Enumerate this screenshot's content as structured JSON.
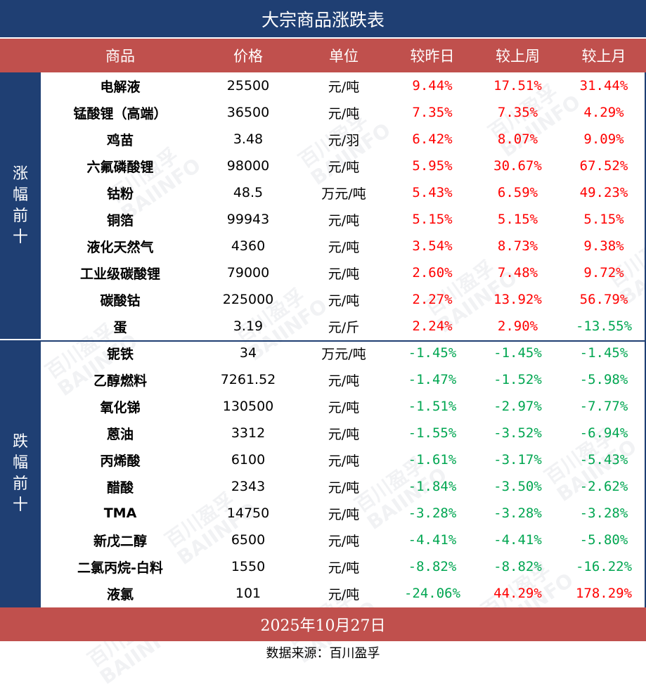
{
  "title": "大宗商品涨跌表",
  "headers": [
    "商品",
    "价格",
    "单位",
    "较昨日",
    "较上周",
    "较上月"
  ],
  "side_labels": {
    "up": [
      "涨",
      "幅",
      "前",
      "十"
    ],
    "down": [
      "跌",
      "幅",
      "前",
      "十"
    ]
  },
  "rows": [
    {
      "name": "电解液",
      "price": "25500",
      "unit": "元/吨",
      "day": "9.44%",
      "week": "17.51%",
      "month": "31.44%",
      "day_dir": "up",
      "week_dir": "up",
      "month_dir": "up"
    },
    {
      "name": "锰酸锂（高端）",
      "price": "36500",
      "unit": "元/吨",
      "day": "7.35%",
      "week": "7.35%",
      "month": "4.29%",
      "day_dir": "up",
      "week_dir": "up",
      "month_dir": "up"
    },
    {
      "name": "鸡苗",
      "price": "3.48",
      "unit": "元/羽",
      "day": "6.42%",
      "week": "8.07%",
      "month": "9.09%",
      "day_dir": "up",
      "week_dir": "up",
      "month_dir": "up"
    },
    {
      "name": "六氟磷酸锂",
      "price": "98000",
      "unit": "元/吨",
      "day": "5.95%",
      "week": "30.67%",
      "month": "67.52%",
      "day_dir": "up",
      "week_dir": "up",
      "month_dir": "up"
    },
    {
      "name": "钴粉",
      "price": "48.5",
      "unit": "万元/吨",
      "day": "5.43%",
      "week": "6.59%",
      "month": "49.23%",
      "day_dir": "up",
      "week_dir": "up",
      "month_dir": "up"
    },
    {
      "name": "铜箔",
      "price": "99943",
      "unit": "元/吨",
      "day": "5.15%",
      "week": "5.15%",
      "month": "5.15%",
      "day_dir": "up",
      "week_dir": "up",
      "month_dir": "up"
    },
    {
      "name": "液化天然气",
      "price": "4360",
      "unit": "元/吨",
      "day": "3.54%",
      "week": "8.73%",
      "month": "9.38%",
      "day_dir": "up",
      "week_dir": "up",
      "month_dir": "up"
    },
    {
      "name": "工业级碳酸锂",
      "price": "79000",
      "unit": "元/吨",
      "day": "2.60%",
      "week": "7.48%",
      "month": "9.72%",
      "day_dir": "up",
      "week_dir": "up",
      "month_dir": "up"
    },
    {
      "name": "碳酸钴",
      "price": "225000",
      "unit": "元/吨",
      "day": "2.27%",
      "week": "13.92%",
      "month": "56.79%",
      "day_dir": "up",
      "week_dir": "up",
      "month_dir": "up"
    },
    {
      "name": "蛋",
      "price": "3.19",
      "unit": "元/斤",
      "day": "2.24%",
      "week": "2.90%",
      "month": "-13.55%",
      "day_dir": "up",
      "week_dir": "up",
      "month_dir": "down"
    },
    {
      "name": "铌铁",
      "price": "34",
      "unit": "万元/吨",
      "day": "-1.45%",
      "week": "-1.45%",
      "month": "-1.45%",
      "day_dir": "down",
      "week_dir": "down",
      "month_dir": "down"
    },
    {
      "name": "乙醇燃料",
      "price": "7261.52",
      "unit": "元/吨",
      "day": "-1.47%",
      "week": "-1.52%",
      "month": "-5.98%",
      "day_dir": "down",
      "week_dir": "down",
      "month_dir": "down"
    },
    {
      "name": "氧化锑",
      "price": "130500",
      "unit": "元/吨",
      "day": "-1.51%",
      "week": "-2.97%",
      "month": "-7.77%",
      "day_dir": "down",
      "week_dir": "down",
      "month_dir": "down"
    },
    {
      "name": "蒽油",
      "price": "3312",
      "unit": "元/吨",
      "day": "-1.55%",
      "week": "-3.52%",
      "month": "-6.94%",
      "day_dir": "down",
      "week_dir": "down",
      "month_dir": "down"
    },
    {
      "name": "丙烯酸",
      "price": "6100",
      "unit": "元/吨",
      "day": "-1.61%",
      "week": "-3.17%",
      "month": "-5.43%",
      "day_dir": "down",
      "week_dir": "down",
      "month_dir": "down"
    },
    {
      "name": "醋酸",
      "price": "2343",
      "unit": "元/吨",
      "day": "-1.84%",
      "week": "-3.50%",
      "month": "-2.62%",
      "day_dir": "down",
      "week_dir": "down",
      "month_dir": "down"
    },
    {
      "name": "TMA",
      "price": "14750",
      "unit": "元/吨",
      "day": "-3.28%",
      "week": "-3.28%",
      "month": "-3.28%",
      "day_dir": "down",
      "week_dir": "down",
      "month_dir": "down"
    },
    {
      "name": "新戊二醇",
      "price": "6500",
      "unit": "元/吨",
      "day": "-4.41%",
      "week": "-4.41%",
      "month": "-5.80%",
      "day_dir": "down",
      "week_dir": "down",
      "month_dir": "down"
    },
    {
      "name": "二氯丙烷-白料",
      "price": "1550",
      "unit": "元/吨",
      "day": "-8.82%",
      "week": "-8.82%",
      "month": "-16.22%",
      "day_dir": "down",
      "week_dir": "down",
      "month_dir": "down"
    },
    {
      "name": "液氯",
      "price": "101",
      "unit": "元/吨",
      "day": "-24.06%",
      "week": "44.29%",
      "month": "178.29%",
      "day_dir": "down",
      "week_dir": "up",
      "month_dir": "up"
    }
  ],
  "date": "2025年10月27日",
  "source": "数据来源：百川盈孚",
  "watermark": {
    "cn": "百川盈孚",
    "en": "BAIINFO"
  },
  "colors": {
    "navy": "#1f3f73",
    "header_red": "#c0504d",
    "up": "#ff0000",
    "down": "#00a651"
  }
}
